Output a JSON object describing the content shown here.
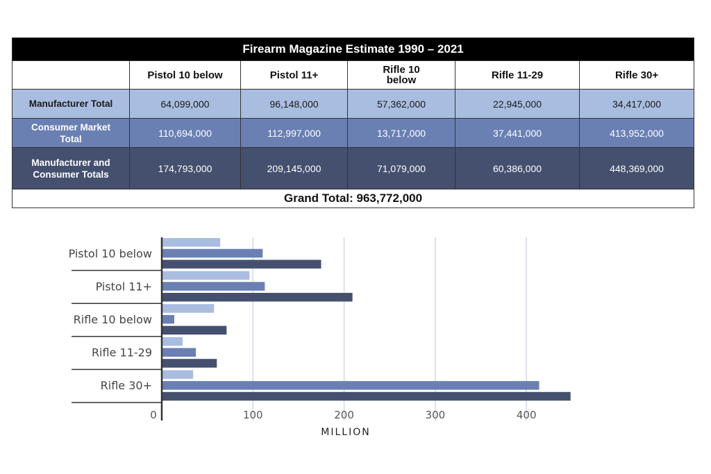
{
  "table": {
    "title": "Firearm Magazine Estimate 1990 – 2021",
    "columns": [
      "Pistol 10 below",
      "Pistol 11+",
      "Rifle 10 below",
      "Rifle 11-29",
      "Rifle 30+"
    ],
    "rows": [
      {
        "label": "Manufacturer Total",
        "values": [
          "64,099,000",
          "96,148,000",
          "57,362,000",
          "22,945,000",
          "34,417,000"
        ]
      },
      {
        "label": "Consumer Market Total",
        "values": [
          "110,694,000",
          "112,997,000",
          "13,717,000",
          "37,441,000",
          "413,952,000"
        ]
      },
      {
        "label": "Manufacturer and Consumer Totals",
        "values": [
          "174,793,000",
          "209,145,000",
          "71,079,000",
          "60,386,000",
          "448,369,000"
        ]
      }
    ],
    "grand_total": "Grand Total: 963,772,000"
  },
  "chart_data": {
    "type": "bar",
    "orientation": "horizontal",
    "categories": [
      "Pistol 10 below",
      "Pistol 11+",
      "Rifle 10 below",
      "Rifle 11-29",
      "Rifle 30+"
    ],
    "series": [
      {
        "values": [
          64.099,
          96.148,
          57.362,
          22.945,
          34.417
        ],
        "color": "#a9bde0"
      },
      {
        "values": [
          110.694,
          112.997,
          13.717,
          37.441,
          413.952
        ],
        "color": "#6a80b3"
      },
      {
        "values": [
          174.793,
          209.145,
          71.079,
          60.386,
          448.369
        ],
        "color": "#44506e"
      }
    ],
    "xlabel": "MILLION",
    "xlim": [
      0,
      450
    ],
    "xticks": [
      "0",
      "100",
      "200",
      "300",
      "400"
    ],
    "grid": true
  }
}
